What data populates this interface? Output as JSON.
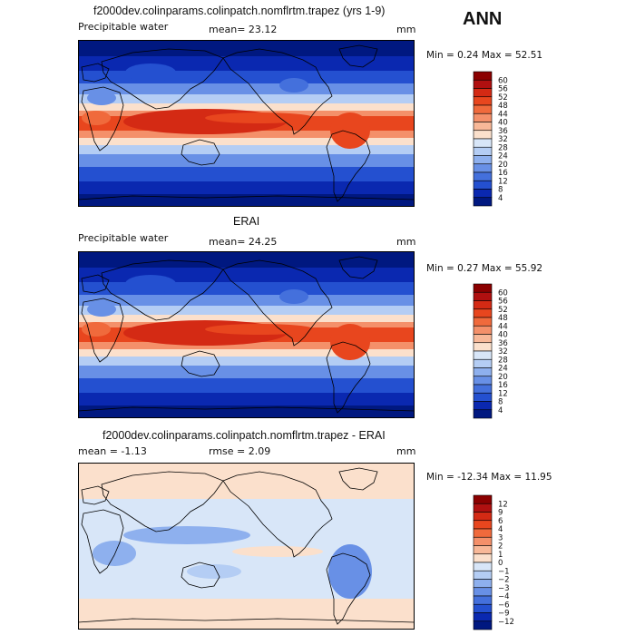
{
  "season": "ANN",
  "panels": [
    {
      "title": "f2000dev.colinparams.colinpatch.nomflrtm.trapez (yrs 1-9)",
      "left_label": "Precipitable water",
      "center_label": "mean=  23.12",
      "units": "mm",
      "minmax": "Min =    0.24  Max =   52.51",
      "levels": [
        "60",
        "56",
        "52",
        "48",
        "44",
        "40",
        "36",
        "32",
        "28",
        "24",
        "20",
        "16",
        "12",
        "8",
        "4"
      ],
      "colors": [
        "#8b0000",
        "#b01010",
        "#d42a14",
        "#e8461e",
        "#f06a3c",
        "#f4906a",
        "#f8b898",
        "#fbe0cc",
        "#d8e6f8",
        "#b4cdf4",
        "#8eb0ee",
        "#6890e6",
        "#4470dc",
        "#2450d0",
        "#0a28b0",
        "#001880"
      ],
      "style": "total"
    },
    {
      "title": "ERAI",
      "left_label": "Precipitable water",
      "center_label": "mean=  24.25",
      "units": "mm",
      "minmax": "Min =    0.27  Max =   55.92",
      "levels": [
        "60",
        "56",
        "52",
        "48",
        "44",
        "40",
        "36",
        "32",
        "28",
        "24",
        "20",
        "16",
        "12",
        "8",
        "4"
      ],
      "colors": [
        "#8b0000",
        "#b01010",
        "#d42a14",
        "#e8461e",
        "#f06a3c",
        "#f4906a",
        "#f8b898",
        "#fbe0cc",
        "#d8e6f8",
        "#b4cdf4",
        "#8eb0ee",
        "#6890e6",
        "#4470dc",
        "#2450d0",
        "#0a28b0",
        "#001880"
      ],
      "style": "total"
    },
    {
      "title": "f2000dev.colinparams.colinpatch.nomflrtm.trapez - ERAI",
      "left_label": "mean =   -1.13",
      "center_label": "rmse =    2.09",
      "units": "mm",
      "minmax": "Min = -12.34  Max =   11.95",
      "levels": [
        "12",
        "9",
        "6",
        "4",
        "3",
        "2",
        "1",
        "0",
        "−1",
        "−2",
        "−3",
        "−4",
        "−6",
        "−9",
        "−12"
      ],
      "colors": [
        "#8b0000",
        "#b01010",
        "#d42a14",
        "#e8461e",
        "#f06a3c",
        "#f4906a",
        "#f8b898",
        "#fbe0cc",
        "#d8e6f8",
        "#b4cdf4",
        "#8eb0ee",
        "#6890e6",
        "#4470dc",
        "#2450d0",
        "#0a28b0",
        "#001880"
      ],
      "style": "diff"
    }
  ]
}
